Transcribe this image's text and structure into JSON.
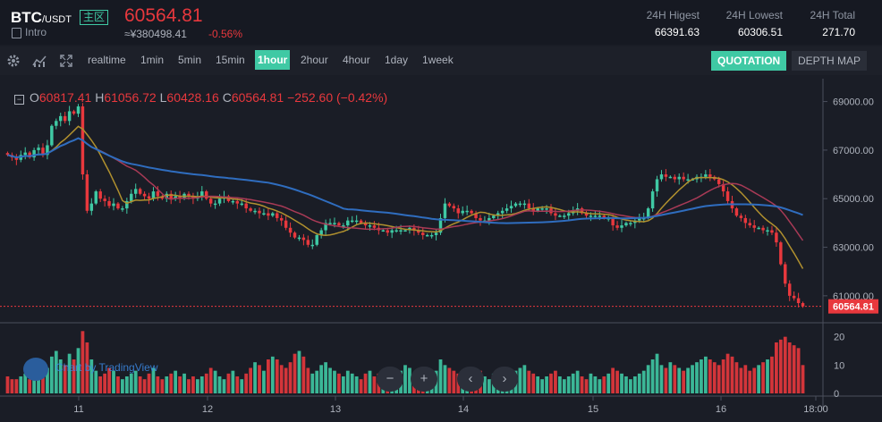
{
  "header": {
    "symbol": "BTC",
    "quote": "/USDT",
    "zone": "主区",
    "intro": "Intro",
    "price": "60564.81",
    "cny_price": "≈¥380498.41",
    "change_pct": "-0.56%",
    "stats": [
      {
        "label": "24H Higest",
        "value": "66391.63"
      },
      {
        "label": "24H Lowest",
        "value": "60306.51"
      },
      {
        "label": "24H Total",
        "value": "271.70"
      }
    ]
  },
  "toolbar": {
    "icons": [
      "gear-icon",
      "indicator-icon",
      "fullscreen-icon"
    ],
    "intervals": [
      "realtime",
      "1min",
      "5min",
      "15min",
      "1hour",
      "2hour",
      "4hour",
      "1day",
      "1week"
    ],
    "active_interval": "1hour",
    "quotation": "QUOTATION",
    "depth_map": "DEPTH MAP"
  },
  "ohlc": {
    "o_label": "O",
    "o": "60817.41",
    "h_label": "H",
    "h": "61056.72",
    "l_label": "L",
    "l": "60428.16",
    "c_label": "C",
    "c": "60564.81",
    "change": "−252.60 (−0.42%)"
  },
  "watermark": "Chart by TradingView",
  "nav_buttons": [
    "−",
    "+",
    "‹",
    "›"
  ],
  "colors": {
    "up": "#3fc9a4",
    "down": "#e8383d",
    "ma_blue": "#2f6dbf",
    "ma_gold": "#b0902e",
    "ma_red": "#a83a56",
    "bg": "#1a1d26"
  },
  "chart_data": {
    "type": "candlestick",
    "price_axis": [
      69000,
      67000,
      65000,
      63000,
      61000
    ],
    "price_axis_labels": [
      "69000.00",
      "67000.00",
      "65000.00",
      "63000.00",
      "61000.00"
    ],
    "last_price_label": "60564.81",
    "volume_axis": [
      20,
      10,
      0
    ],
    "x_labels": [
      "11",
      "12",
      "13",
      "14",
      "15",
      "16",
      "18:00"
    ],
    "closes": [
      66800,
      66700,
      66600,
      66800,
      66900,
      66700,
      67000,
      67100,
      66800,
      67200,
      68000,
      68200,
      68400,
      68200,
      68600,
      68500,
      68800,
      66000,
      64500,
      64800,
      65300,
      65000,
      64900,
      64700,
      64800,
      64600,
      64600,
      64900,
      65200,
      65400,
      65200,
      65100,
      65000,
      65300,
      65100,
      65000,
      65200,
      65000,
      65100,
      65000,
      65200,
      65100,
      65000,
      65100,
      65300,
      65000,
      64800,
      64800,
      65000,
      65100,
      64900,
      64900,
      64800,
      64800,
      64600,
      64500,
      64500,
      64400,
      64400,
      64300,
      64400,
      64200,
      64100,
      63800,
      63600,
      63400,
      63400,
      63300,
      63100,
      63100,
      63500,
      63700,
      64000,
      64000,
      64000,
      63900,
      63900,
      64100,
      64100,
      64100,
      64000,
      63900,
      63900,
      63800,
      63700,
      63700,
      63600,
      63700,
      63700,
      63700,
      63700,
      63800,
      63700,
      63600,
      63500,
      63500,
      63500,
      63600,
      64200,
      64800,
      64700,
      64600,
      64400,
      64500,
      64500,
      64400,
      64200,
      64100,
      64100,
      64200,
      64300,
      64400,
      64500,
      64600,
      64700,
      64800,
      64800,
      64800,
      64600,
      64500,
      64600,
      64600,
      64600,
      64400,
      64300,
      64300,
      64300,
      64400,
      64500,
      64600,
      64400,
      64300,
      64300,
      64300,
      64300,
      64200,
      64200,
      63900,
      63800,
      63900,
      64000,
      64000,
      64100,
      64200,
      64200,
      64600,
      65300,
      65800,
      66000,
      65900,
      65900,
      65800,
      65900,
      65800,
      65800,
      65800,
      65900,
      65900,
      66000,
      65900,
      65800,
      65600,
      65300,
      64900,
      64600,
      64300,
      64200,
      64000,
      63900,
      63800,
      63800,
      63700,
      63700,
      63600,
      63200,
      62300,
      61500,
      61000,
      60900,
      60700,
      60564.81
    ],
    "volumes": [
      6,
      5,
      5,
      6,
      7,
      5,
      8,
      7,
      6,
      9,
      13,
      15,
      12,
      10,
      14,
      12,
      16,
      22,
      18,
      12,
      8,
      6,
      7,
      9,
      8,
      6,
      5,
      6,
      7,
      8,
      6,
      5,
      7,
      9,
      6,
      5,
      6,
      7,
      8,
      6,
      7,
      5,
      6,
      5,
      6,
      7,
      9,
      8,
      6,
      5,
      7,
      8,
      6,
      5,
      7,
      9,
      11,
      10,
      8,
      12,
      13,
      12,
      10,
      9,
      11,
      14,
      15,
      13,
      9,
      7,
      8,
      10,
      11,
      9,
      8,
      7,
      6,
      8,
      7,
      6,
      5,
      7,
      8,
      6,
      7,
      8,
      5,
      6,
      7,
      8,
      10,
      9,
      7,
      6,
      5,
      6,
      7,
      8,
      12,
      10,
      9,
      8,
      7,
      6,
      5,
      6,
      7,
      8,
      6,
      5,
      7,
      8,
      7,
      6,
      7,
      8,
      9,
      10,
      8,
      7,
      6,
      5,
      6,
      7,
      8,
      6,
      5,
      6,
      7,
      8,
      6,
      5,
      7,
      6,
      5,
      6,
      7,
      9,
      8,
      7,
      6,
      5,
      6,
      7,
      8,
      10,
      12,
      14,
      10,
      9,
      11,
      10,
      9,
      8,
      9,
      10,
      11,
      12,
      13,
      12,
      11,
      10,
      12,
      14,
      13,
      11,
      9,
      10,
      8,
      9,
      10,
      11,
      12,
      13,
      18,
      19,
      20,
      18,
      17,
      16,
      10
    ]
  }
}
